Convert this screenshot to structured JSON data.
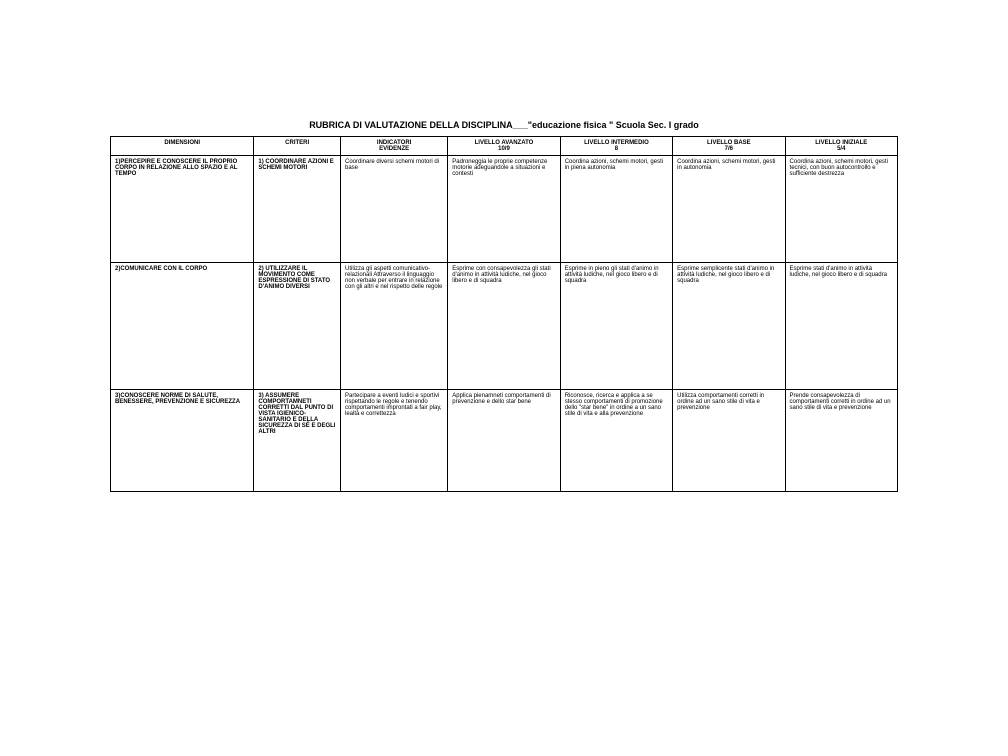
{
  "title": "RUBRICA DI VALUTAZIONE DELLA DISCIPLINA___\"educazione fisica \"  Scuola Sec. I grado",
  "headers": {
    "dim": "DIMENSIONI",
    "crit": "CRITERI",
    "ind_top": "INDICATORI",
    "ind_sub": "EVIDENZE",
    "lvl_adv_top": "LIVELLO AVANZATO",
    "lvl_adv_sub": "10/9",
    "lvl_int_top": "LIVELLO INTERMEDIO",
    "lvl_int_sub": "8",
    "lvl_base_top": "LIVELLO BASE",
    "lvl_base_sub": "7/6",
    "lvl_init_top": "LIVELLO INIZIALE",
    "lvl_init_sub": "5/4"
  },
  "rows": [
    {
      "dim": "1)PERCEPIRE E CONOSCERE IL PROPRIO CORPO IN RELAZIONE ALLO SPAZIO E AL TEMPO",
      "crit": "1) COORDINARE AZIONI E SCHEMI MOTORI",
      "ind": "Coordinare diversi schemi motori di base",
      "adv": "Padroneggia le proprie competenze motorie adeguandole a situazioni e contesti",
      "int": "Coordina azioni, schemi motori, gesti in piena autonomia",
      "base": "Coordina azioni, schemi motori, gesti in autonomia",
      "init": "Coordina azioni, schemi motori, gesti tecnici, con buon autocontrollo e sufficiente destrezza"
    },
    {
      "dim": "2)COMUNICARE CON IL CORPO",
      "crit": "2) UTILIZZARE IL MOVIMENTO COME ESPRESSIONE DI STATO D'ANIMO DIVERSI",
      "ind": "Utilizza gli aspetti comunicativo-relazionali Attraverso il linguaggio non verbale per entrare in\nrelazione con gli altri e nel rispetto delle regole",
      "adv": "Esprime con consapevolezza gli stati d'animo in attività ludiche, nel gioco libero e di squadra",
      "int": "Esprime in pieno gli stati d'animo in attività ludiche, nel gioco libero e di squadra",
      "base": "Esprime semplicente stati d'animo in attività ludiche, nel gioco libero e di squadra",
      "init": "Esprime stati d'animo in attività ludiche, nel gioco libero e di squadra"
    },
    {
      "dim": "3)CONOSCERE NORME DI SALUTE, BENESSERE, PREVENZIONE E SICUREZZA",
      "crit": "3) ASSUMERE COMPORTAMNETI CORRETTI DAL PUNTO DI VISTA IGIENICO-SANITARIO E DELLA SICUREZZA DI SÉ E DEGLI ALTRI",
      "ind": "Partecipare a eventi ludici e sportivi rispettando le regole e tenendo comportamenti improntati a fair play, lealtà e correttezza",
      "adv": "Applica pienamneti comportamenti di prevenzione e dello star bene",
      "int": "Riconosce, ricerca e applica a se stesso comportamenti di promozione dello \"star bene\" in ordine a un sano stile di vita e alla prevenzione",
      "base": "Utilizza comportamenti corretti in ordine ad un sano stile di vita e prevenzione",
      "init": "Prende consapevolezza di comportamenti corretti in ordine ad un sano stile di vita e prevenzione"
    }
  ]
}
